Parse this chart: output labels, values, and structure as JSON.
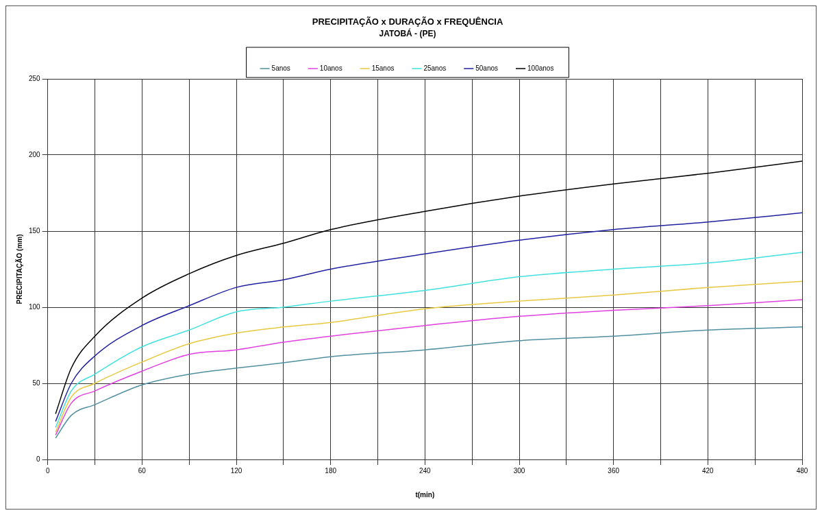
{
  "chart_data": {
    "type": "line",
    "title": "PRECIPITAÇÃO x DURAÇÃO x FREQUÊNCIA",
    "subtitle": "JATOBÁ - (PE)",
    "xlabel": "t(min)",
    "ylabel": "PRECIPITAÇÃO (mm)",
    "x": [
      5,
      15,
      30,
      60,
      90,
      120,
      150,
      180,
      240,
      300,
      360,
      420,
      480
    ],
    "series": [
      {
        "name": "5anos",
        "color": "#4f8fa0",
        "values": [
          14,
          29,
          36,
          49,
          56,
          60,
          63.5,
          67.5,
          72,
          78,
          81,
          85,
          87
        ]
      },
      {
        "name": "10anos",
        "color": "#e040e0",
        "values": [
          16,
          37,
          45,
          58,
          69,
          72,
          77,
          81,
          88,
          94,
          98,
          101,
          105
        ]
      },
      {
        "name": "15anos",
        "color": "#e8c840",
        "values": [
          18,
          41,
          50,
          64,
          76,
          83,
          87,
          90,
          99,
          104,
          108,
          113,
          117
        ]
      },
      {
        "name": "25anos",
        "color": "#40e0e0",
        "values": [
          21,
          45,
          56,
          74,
          85,
          97,
          100,
          104,
          111,
          120,
          125,
          129,
          136
        ]
      },
      {
        "name": "50anos",
        "color": "#2020a0",
        "values": [
          25,
          50,
          68,
          88,
          101,
          113,
          118,
          125,
          135,
          144,
          151,
          156,
          162
        ]
      },
      {
        "name": "100anos",
        "color": "#000000",
        "values": [
          30,
          60,
          81,
          106,
          122,
          134,
          142,
          151,
          163,
          173,
          181,
          188,
          196
        ]
      }
    ],
    "xlim": [
      0,
      480
    ],
    "ylim": [
      0,
      250
    ],
    "xticks": [
      0,
      {
        "value": 30,
        "label": null
      },
      60,
      {
        "value": 90,
        "label": null
      },
      120,
      {
        "value": 150,
        "label": null
      },
      180,
      {
        "value": 210,
        "label": null
      },
      240,
      {
        "value": 270,
        "label": null
      },
      300,
      {
        "value": 330,
        "label": null
      },
      360,
      {
        "value": 390,
        "label": null
      },
      420,
      {
        "value": 450,
        "label": null
      },
      480
    ],
    "yticks": [
      0,
      50,
      100,
      150,
      200,
      250
    ],
    "grid": true,
    "legend": "top",
    "marker": "none",
    "line_style": "solid"
  }
}
